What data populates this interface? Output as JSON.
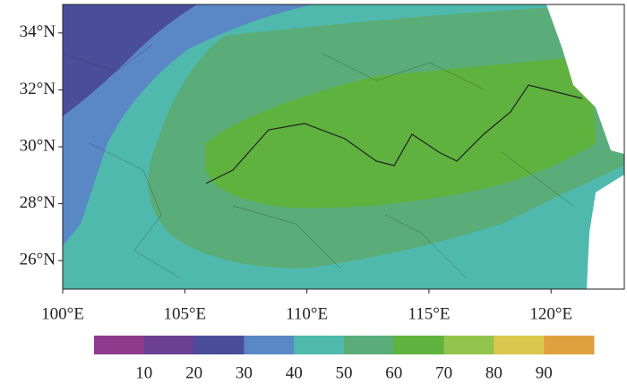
{
  "chart_data": {
    "type": "contour-map",
    "xlim": [
      100,
      123
    ],
    "ylim": [
      25,
      35
    ],
    "xticks": [
      {
        "value": 100,
        "label": "100°E"
      },
      {
        "value": 105,
        "label": "105°E"
      },
      {
        "value": 110,
        "label": "110°E"
      },
      {
        "value": 115,
        "label": "115°E"
      },
      {
        "value": 120,
        "label": "120°E"
      }
    ],
    "yticks": [
      {
        "value": 26,
        "label": "26°N"
      },
      {
        "value": 28,
        "label": "28°N"
      },
      {
        "value": 30,
        "label": "30°N"
      },
      {
        "value": 32,
        "label": "32°N"
      },
      {
        "value": 34,
        "label": "34°N"
      }
    ],
    "colorbar": {
      "lim": [
        0,
        100
      ],
      "ticks": [
        10,
        20,
        30,
        40,
        50,
        60,
        70,
        80,
        90
      ],
      "colors": [
        "#8e3b8e",
        "#6b3f91",
        "#4a4e9a",
        "#5a87c5",
        "#4fb9ad",
        "#5aad78",
        "#5fb23e",
        "#93c44d",
        "#d8c84e",
        "#e0a03e"
      ]
    }
  }
}
